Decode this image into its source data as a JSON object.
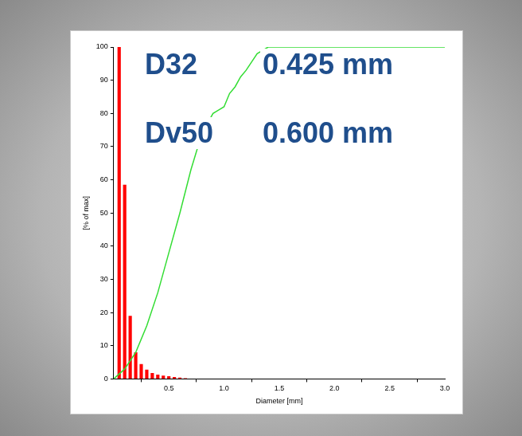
{
  "chart_data": {
    "type": "bar",
    "x_label": "Diameter [mm]",
    "y_label": "[% of max]",
    "xlim": [
      0,
      3
    ],
    "xticks": [
      0.5,
      {
        "value": 1,
        "label": "1.0"
      },
      1.5,
      {
        "value": 2,
        "label": "2.0"
      },
      2.5,
      {
        "value": 3,
        "label": "3.0"
      }
    ],
    "ylim": [
      0,
      100
    ],
    "yticks": [
      0,
      10,
      20,
      30,
      40,
      50,
      60,
      70,
      80,
      90,
      100
    ],
    "grid": false,
    "series": [
      {
        "type": "bar",
        "color": "#ff0000",
        "bins": [
          0.025,
          0.075,
          0.125,
          0.175,
          0.225,
          0.275,
          0.325,
          0.375,
          0.425,
          0.475,
          0.525,
          0.575,
          0.625,
          0.675
        ],
        "values": [
          100,
          58.5,
          19,
          8,
          4.5,
          2.8,
          1.8,
          1.3,
          1,
          0.8,
          0.6,
          0.4,
          0.2
        ]
      },
      {
        "type": "line",
        "color": "#33dd33",
        "x": [
          0,
          0.1,
          0.2,
          0.3,
          0.4,
          0.5,
          0.6,
          0.7,
          0.8,
          0.9,
          0.95,
          1.0,
          1.05,
          1.1,
          1.15,
          1.2,
          1.3,
          1.4,
          3.0
        ],
        "values": [
          0,
          3,
          8,
          16,
          26,
          38,
          50,
          63,
          74,
          80,
          81,
          82,
          86,
          88,
          91,
          93,
          98,
          100,
          100
        ]
      }
    ],
    "annotations": [
      {
        "text": "D32"
      },
      {
        "text": "0.425 mm"
      },
      {
        "text": "Dv50"
      },
      {
        "text": "0.600 mm"
      }
    ]
  }
}
